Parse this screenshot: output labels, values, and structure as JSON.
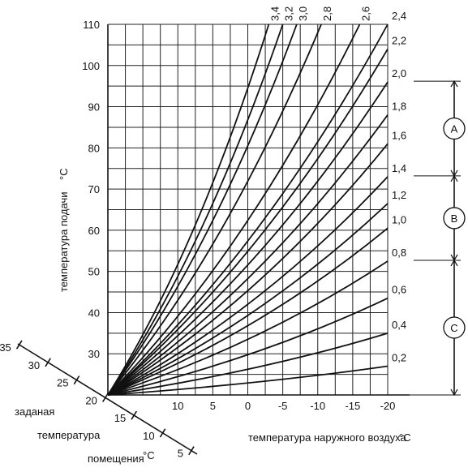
{
  "chart_data": {
    "type": "line",
    "title": "",
    "ylabel": "температура подачи",
    "ylabel_unit": "°C",
    "xlabel": "температура наружного воздуха",
    "xlabel_unit": "°C",
    "room_axis_label": [
      "заданая",
      "температура",
      "помещения"
    ],
    "room_axis_unit": "°C",
    "room_ticks": [
      "35",
      "30",
      "25",
      "20",
      "15",
      "10",
      "5"
    ],
    "x_ticks": [
      "10",
      "5",
      "0",
      "-5",
      "-10",
      "-15",
      "-20"
    ],
    "y_ticks": [
      "30",
      "40",
      "50",
      "60",
      "70",
      "80",
      "90",
      "100",
      "110"
    ],
    "xlim": [
      20,
      -20
    ],
    "ylim": [
      20,
      110
    ],
    "origin": {
      "outdoor": 20,
      "supply": 20
    },
    "series": [
      {
        "name": "0,2",
        "values": [
          [
            20,
            20
          ],
          [
            -20,
            27
          ]
        ]
      },
      {
        "name": "0,4",
        "values": [
          [
            20,
            20
          ],
          [
            -20,
            35
          ]
        ]
      },
      {
        "name": "0,6",
        "values": [
          [
            20,
            20
          ],
          [
            -20,
            43.5
          ]
        ]
      },
      {
        "name": "0,8",
        "values": [
          [
            20,
            20
          ],
          [
            -20,
            52.5
          ]
        ]
      },
      {
        "name": "1,0",
        "values": [
          [
            20,
            20
          ],
          [
            -20,
            60.5
          ]
        ]
      },
      {
        "name": "1,2",
        "values": [
          [
            20,
            20
          ],
          [
            -20,
            66.5
          ]
        ]
      },
      {
        "name": "1,4",
        "values": [
          [
            20,
            20
          ],
          [
            -20,
            73
          ]
        ]
      },
      {
        "name": "1,6",
        "values": [
          [
            20,
            20
          ],
          [
            -20,
            81
          ]
        ]
      },
      {
        "name": "1,8",
        "values": [
          [
            20,
            20
          ],
          [
            -20,
            88
          ]
        ]
      },
      {
        "name": "2,0",
        "values": [
          [
            20,
            20
          ],
          [
            -20,
            96
          ]
        ]
      },
      {
        "name": "2,2",
        "values": [
          [
            20,
            20
          ],
          [
            -20,
            104
          ]
        ]
      },
      {
        "name": "2,4",
        "values": [
          [
            20,
            20
          ],
          [
            -20,
            110
          ]
        ]
      },
      {
        "name": "2,6",
        "values": [
          [
            20,
            20
          ],
          [
            -16,
            110
          ]
        ]
      },
      {
        "name": "2,8",
        "values": [
          [
            20,
            20
          ],
          [
            -10.5,
            110
          ]
        ]
      },
      {
        "name": "3,0",
        "values": [
          [
            20,
            20
          ],
          [
            -7,
            110
          ]
        ]
      },
      {
        "name": "3,2",
        "values": [
          [
            20,
            20
          ],
          [
            -5,
            110
          ]
        ]
      },
      {
        "name": "3,4",
        "values": [
          [
            20,
            20
          ],
          [
            -3,
            110
          ]
        ]
      }
    ],
    "zones": [
      {
        "label": "A",
        "from": 2.0,
        "to": 1.4
      },
      {
        "label": "B",
        "from": 1.4,
        "to": 0.8
      },
      {
        "label": "C",
        "from": 0.8,
        "to": 0.0
      }
    ],
    "grid": true
  }
}
